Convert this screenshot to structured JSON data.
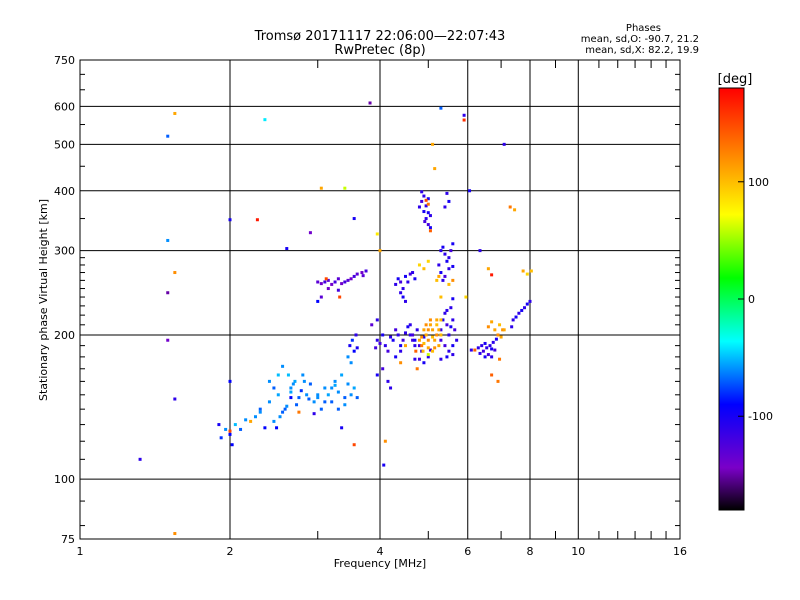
{
  "header": {
    "title_line1": "Tromsø 20171117 22:06:00—22:07:43",
    "title_line2": "RwPretec (8p)",
    "stats_title": "Phases",
    "stats_line1": "mean, sd,O: -90.7, 21.2",
    "stats_line2": "mean, sd,X:  82.2, 19.9"
  },
  "chart_data": {
    "type": "scatter",
    "xlabel": "Frequency [MHz]",
    "ylabel": "Stationary phase Virtual Height [km]",
    "x_scale": "log2",
    "y_scale": "log",
    "xlim": [
      1,
      16
    ],
    "ylim": [
      75,
      750
    ],
    "x_ticks": [
      1,
      2,
      4,
      6,
      8,
      10,
      16
    ],
    "x_tick_labels": [
      "1",
      "2",
      "4",
      "6",
      "8",
      "10",
      "16"
    ],
    "x_minor_ticks": [
      3,
      5,
      7,
      9,
      11,
      12,
      13,
      14,
      15
    ],
    "y_ticks": [
      75,
      100,
      200,
      300,
      400,
      500,
      600,
      750
    ],
    "y_tick_labels": [
      "75",
      "100",
      "200",
      "300",
      "400",
      "500",
      "600",
      "750"
    ],
    "colorbar": {
      "label": "[deg]",
      "min": -180,
      "max": 180,
      "ticks": [
        100,
        0,
        -100
      ],
      "tick_labels": [
        "100",
        "0",
        "-100"
      ]
    },
    "points": [
      [
        1.55,
        580,
        110
      ],
      [
        1.5,
        520,
        -70
      ],
      [
        1.5,
        315,
        -60
      ],
      [
        1.55,
        270,
        120
      ],
      [
        1.5,
        245,
        -150
      ],
      [
        1.5,
        195,
        -140
      ],
      [
        1.55,
        147,
        -110
      ],
      [
        1.32,
        110,
        -110
      ],
      [
        1.55,
        77,
        120
      ],
      [
        2.0,
        348,
        -100
      ],
      [
        2.27,
        348,
        170
      ],
      [
        2.35,
        563,
        -40
      ],
      [
        2.0,
        160,
        -90
      ],
      [
        2.6,
        303,
        -100
      ],
      [
        2.9,
        327,
        -140
      ],
      [
        3.05,
        405,
        110
      ],
      [
        3.4,
        405,
        60
      ],
      [
        3.55,
        350,
        -100
      ],
      [
        3.82,
        610,
        -150
      ],
      [
        4.0,
        300,
        110
      ],
      [
        3.95,
        325,
        80
      ],
      [
        1.92,
        122,
        -80
      ],
      [
        1.96,
        127,
        -60
      ],
      [
        2.0,
        124,
        -90
      ],
      [
        2.05,
        130,
        -50
      ],
      [
        2.1,
        127,
        -70
      ],
      [
        2.15,
        133,
        -60
      ],
      [
        1.9,
        130,
        -100
      ],
      [
        2.02,
        118,
        -90
      ],
      [
        2.25,
        135,
        -60
      ],
      [
        2.3,
        140,
        -70
      ],
      [
        2.35,
        128,
        -90
      ],
      [
        2.4,
        145,
        -60
      ],
      [
        2.45,
        132,
        -60
      ],
      [
        2.5,
        150,
        -55
      ],
      [
        2.55,
        138,
        -70
      ],
      [
        2.6,
        142,
        -60
      ],
      [
        2.65,
        155,
        -60
      ],
      [
        2.7,
        160,
        -55
      ],
      [
        2.75,
        148,
        -70
      ],
      [
        2.8,
        165,
        -60
      ],
      [
        2.85,
        150,
        -60
      ],
      [
        2.9,
        158,
        -70
      ],
      [
        2.95,
        145,
        -60
      ],
      [
        2.5,
        165,
        -50
      ],
      [
        2.55,
        172,
        -60
      ],
      [
        2.4,
        160,
        -60
      ],
      [
        2.45,
        155,
        -70
      ],
      [
        2.48,
        128,
        -90
      ],
      [
        2.52,
        135,
        -60
      ],
      [
        2.58,
        140,
        -70
      ],
      [
        2.3,
        138,
        -60
      ],
      [
        2.62,
        165,
        -50
      ],
      [
        2.68,
        158,
        -60
      ],
      [
        2.72,
        143,
        -70
      ],
      [
        2.65,
        152,
        -55
      ],
      [
        2.78,
        153,
        -80
      ],
      [
        2.82,
        160,
        -60
      ],
      [
        2.88,
        147,
        -70
      ],
      [
        3.0,
        150,
        -60
      ],
      [
        3.05,
        140,
        -70
      ],
      [
        3.1,
        155,
        -60
      ],
      [
        3.15,
        150,
        -55
      ],
      [
        3.2,
        145,
        -70
      ],
      [
        3.25,
        160,
        -60
      ],
      [
        3.3,
        152,
        -60
      ],
      [
        3.35,
        165,
        -55
      ],
      [
        3.4,
        148,
        -70
      ],
      [
        3.45,
        158,
        -60
      ],
      [
        3.5,
        150,
        -60
      ],
      [
        3.55,
        155,
        -55
      ],
      [
        3.6,
        148,
        -70
      ],
      [
        3.5,
        175,
        -60
      ],
      [
        3.45,
        180,
        -60
      ],
      [
        3.55,
        185,
        -90
      ],
      [
        3.58,
        200,
        -110
      ],
      [
        3.52,
        195,
        -80
      ],
      [
        3.48,
        190,
        -100
      ],
      [
        3.6,
        188,
        -100
      ],
      [
        3.4,
        143,
        -60
      ],
      [
        3.3,
        140,
        -70
      ],
      [
        3.2,
        155,
        -60
      ],
      [
        3.1,
        145,
        -70
      ],
      [
        3.0,
        148,
        -60
      ],
      [
        3.25,
        157,
        -55
      ],
      [
        2.75,
        138,
        130
      ],
      [
        2.2,
        132,
        110
      ],
      [
        2.0,
        126,
        150
      ],
      [
        3.55,
        118,
        150
      ],
      [
        3.35,
        128,
        -100
      ],
      [
        2.95,
        137,
        -110
      ],
      [
        2.65,
        148,
        -90
      ],
      [
        3.0,
        258,
        -130
      ],
      [
        3.05,
        256,
        -140
      ],
      [
        3.1,
        258,
        -120
      ],
      [
        3.15,
        260,
        -130
      ],
      [
        3.2,
        255,
        -140
      ],
      [
        3.25,
        258,
        -120
      ],
      [
        3.3,
        262,
        -130
      ],
      [
        3.35,
        256,
        -140
      ],
      [
        3.4,
        258,
        -120
      ],
      [
        3.45,
        260,
        -130
      ],
      [
        3.5,
        262,
        -140
      ],
      [
        3.55,
        265,
        -120
      ],
      [
        3.6,
        268,
        -130
      ],
      [
        3.68,
        270,
        -140
      ],
      [
        3.75,
        272,
        -120
      ],
      [
        3.7,
        266,
        -130
      ],
      [
        3.15,
        250,
        -140
      ],
      [
        3.05,
        240,
        -130
      ],
      [
        3.12,
        262,
        150
      ],
      [
        3.3,
        248,
        -120
      ],
      [
        3.32,
        240,
        150
      ],
      [
        3.0,
        235,
        -90
      ],
      [
        3.95,
        195,
        -110
      ],
      [
        4.0,
        192,
        -120
      ],
      [
        4.05,
        200,
        -100
      ],
      [
        4.1,
        190,
        -110
      ],
      [
        4.15,
        185,
        -120
      ],
      [
        4.2,
        198,
        -110
      ],
      [
        4.25,
        195,
        -100
      ],
      [
        4.3,
        205,
        -120
      ],
      [
        4.35,
        200,
        -110
      ],
      [
        4.4,
        190,
        -100
      ],
      [
        4.45,
        195,
        -120
      ],
      [
        4.5,
        202,
        -110
      ],
      [
        4.55,
        208,
        -100
      ],
      [
        4.6,
        200,
        -110
      ],
      [
        4.65,
        195,
        -120
      ],
      [
        4.7,
        190,
        -110
      ],
      [
        4.3,
        180,
        -100
      ],
      [
        4.4,
        185,
        -110
      ],
      [
        4.05,
        170,
        -120
      ],
      [
        4.15,
        160,
        -110
      ],
      [
        3.95,
        165,
        -100
      ],
      [
        4.2,
        155,
        -110
      ],
      [
        4.1,
        120,
        120
      ],
      [
        4.07,
        107,
        -100
      ],
      [
        3.92,
        188,
        -120
      ],
      [
        3.85,
        210,
        -130
      ],
      [
        3.95,
        215,
        -110
      ],
      [
        4.3,
        255,
        -110
      ],
      [
        4.35,
        262,
        -100
      ],
      [
        4.4,
        258,
        -120
      ],
      [
        4.45,
        250,
        -110
      ],
      [
        4.5,
        265,
        -100
      ],
      [
        4.55,
        258,
        -110
      ],
      [
        4.6,
        268,
        -120
      ],
      [
        4.65,
        270,
        -110
      ],
      [
        4.7,
        262,
        -100
      ],
      [
        4.4,
        245,
        -110
      ],
      [
        4.45,
        240,
        -100
      ],
      [
        4.5,
        235,
        -110
      ],
      [
        4.8,
        370,
        -110
      ],
      [
        4.85,
        380,
        -120
      ],
      [
        4.9,
        362,
        -100
      ],
      [
        4.95,
        350,
        -110
      ],
      [
        5.0,
        340,
        -120
      ],
      [
        5.05,
        335,
        -100
      ],
      [
        4.95,
        372,
        -110
      ],
      [
        5.0,
        360,
        -100
      ],
      [
        4.92,
        345,
        -120
      ],
      [
        5.05,
        355,
        -110
      ],
      [
        5.0,
        385,
        -100
      ],
      [
        4.9,
        390,
        -110
      ],
      [
        5.0,
        375,
        130
      ],
      [
        4.95,
        382,
        150
      ],
      [
        4.85,
        398,
        -110
      ],
      [
        5.05,
        330,
        140
      ],
      [
        5.45,
        395,
        -110
      ],
      [
        5.5,
        380,
        -100
      ],
      [
        5.4,
        370,
        -110
      ],
      [
        5.3,
        300,
        -110
      ],
      [
        5.35,
        305,
        -100
      ],
      [
        5.4,
        295,
        -110
      ],
      [
        5.45,
        285,
        -100
      ],
      [
        5.5,
        290,
        -110
      ],
      [
        5.55,
        300,
        -120
      ],
      [
        5.6,
        310,
        -100
      ],
      [
        5.25,
        280,
        -110
      ],
      [
        5.3,
        270,
        -100
      ],
      [
        5.35,
        260,
        -110
      ],
      [
        5.4,
        265,
        -120
      ],
      [
        5.5,
        275,
        -110
      ],
      [
        5.6,
        278,
        -100
      ],
      [
        5.0,
        285,
        90
      ],
      [
        5.2,
        260,
        100
      ],
      [
        5.25,
        265,
        110
      ],
      [
        5.3,
        240,
        100
      ],
      [
        5.5,
        255,
        100
      ],
      [
        5.6,
        260,
        120
      ],
      [
        4.8,
        280,
        90
      ],
      [
        4.9,
        275,
        100
      ],
      [
        4.6,
        210,
        -110
      ],
      [
        4.65,
        200,
        -120
      ],
      [
        4.7,
        195,
        -100
      ],
      [
        4.75,
        205,
        -110
      ],
      [
        4.8,
        190,
        -120
      ],
      [
        4.85,
        185,
        -110
      ],
      [
        4.9,
        198,
        -100
      ],
      [
        4.7,
        178,
        -110
      ],
      [
        4.8,
        178,
        -120
      ],
      [
        4.9,
        175,
        -100
      ],
      [
        5.0,
        180,
        -110
      ],
      [
        5.05,
        186,
        -120
      ],
      [
        5.3,
        205,
        -110
      ],
      [
        5.35,
        215,
        -100
      ],
      [
        5.4,
        222,
        -110
      ],
      [
        5.45,
        210,
        -120
      ],
      [
        5.5,
        200,
        -110
      ],
      [
        5.55,
        208,
        -100
      ],
      [
        5.6,
        215,
        -110
      ],
      [
        5.65,
        205,
        -120
      ],
      [
        5.7,
        195,
        -110
      ],
      [
        5.6,
        190,
        -100
      ],
      [
        5.5,
        185,
        -110
      ],
      [
        5.4,
        190,
        -120
      ],
      [
        5.3,
        178,
        -110
      ],
      [
        5.45,
        180,
        -100
      ],
      [
        5.6,
        182,
        -110
      ],
      [
        5.3,
        195,
        -120
      ],
      [
        5.55,
        228,
        -110
      ],
      [
        5.6,
        238,
        -100
      ],
      [
        5.45,
        225,
        -110
      ],
      [
        4.8,
        195,
        110
      ],
      [
        4.85,
        198,
        120
      ],
      [
        4.9,
        192,
        100
      ],
      [
        4.95,
        200,
        110
      ],
      [
        5.0,
        205,
        120
      ],
      [
        5.05,
        210,
        110
      ],
      [
        5.1,
        198,
        100
      ],
      [
        5.15,
        195,
        110
      ],
      [
        5.2,
        200,
        120
      ],
      [
        5.25,
        205,
        110
      ],
      [
        5.3,
        200,
        100
      ],
      [
        4.9,
        205,
        110
      ],
      [
        5.0,
        195,
        120
      ],
      [
        5.1,
        205,
        110
      ],
      [
        5.2,
        210,
        100
      ],
      [
        5.25,
        190,
        110
      ],
      [
        5.15,
        188,
        120
      ],
      [
        5.0,
        188,
        110
      ],
      [
        4.88,
        185,
        100
      ],
      [
        4.95,
        210,
        120
      ],
      [
        5.2,
        215,
        110
      ],
      [
        5.1,
        185,
        100
      ],
      [
        4.4,
        175,
        120
      ],
      [
        4.5,
        190,
        110
      ],
      [
        4.85,
        190,
        130
      ],
      [
        5.05,
        215,
        120
      ],
      [
        5.3,
        215,
        100
      ],
      [
        4.72,
        185,
        140
      ],
      [
        4.75,
        170,
        130
      ],
      [
        5.0,
        182,
        60
      ],
      [
        6.4,
        190,
        -110
      ],
      [
        6.45,
        185,
        -120
      ],
      [
        6.5,
        192,
        -100
      ],
      [
        6.55,
        188,
        -110
      ],
      [
        6.6,
        182,
        -120
      ],
      [
        6.65,
        190,
        -110
      ],
      [
        6.7,
        187,
        -100
      ],
      [
        6.75,
        193,
        -110
      ],
      [
        6.8,
        186,
        -120
      ],
      [
        6.35,
        183,
        -110
      ],
      [
        6.5,
        180,
        -100
      ],
      [
        6.7,
        180,
        -110
      ],
      [
        6.85,
        196,
        -100
      ],
      [
        6.3,
        188,
        -110
      ],
      [
        6.2,
        186,
        140
      ],
      [
        6.1,
        186,
        -110
      ],
      [
        6.9,
        200,
        120
      ],
      [
        7.0,
        198,
        110
      ],
      [
        7.05,
        205,
        120
      ],
      [
        6.95,
        210,
        100
      ],
      [
        6.8,
        205,
        110
      ],
      [
        6.7,
        213,
        110
      ],
      [
        6.6,
        208,
        120
      ],
      [
        7.1,
        205,
        110
      ],
      [
        6.95,
        178,
        130
      ],
      [
        6.7,
        165,
        140
      ],
      [
        6.9,
        160,
        130
      ],
      [
        7.4,
        215,
        -110
      ],
      [
        7.5,
        218,
        -100
      ],
      [
        7.6,
        222,
        -110
      ],
      [
        7.7,
        225,
        -100
      ],
      [
        7.8,
        228,
        -110
      ],
      [
        7.9,
        232,
        -100
      ],
      [
        8.0,
        235,
        -110
      ],
      [
        7.35,
        208,
        -110
      ],
      [
        8.05,
        272,
        100
      ],
      [
        7.75,
        272,
        110
      ],
      [
        7.9,
        268,
        90
      ],
      [
        7.1,
        500,
        -110
      ],
      [
        7.3,
        370,
        130
      ],
      [
        7.45,
        365,
        110
      ],
      [
        6.35,
        300,
        -110
      ],
      [
        6.05,
        400,
        -100
      ],
      [
        5.9,
        575,
        -110
      ],
      [
        5.9,
        562,
        160
      ],
      [
        5.3,
        595,
        -70
      ],
      [
        5.1,
        500,
        110
      ],
      [
        5.15,
        445,
        110
      ],
      [
        6.7,
        267,
        170
      ],
      [
        6.6,
        275,
        110
      ],
      [
        5.95,
        240,
        90
      ]
    ]
  }
}
